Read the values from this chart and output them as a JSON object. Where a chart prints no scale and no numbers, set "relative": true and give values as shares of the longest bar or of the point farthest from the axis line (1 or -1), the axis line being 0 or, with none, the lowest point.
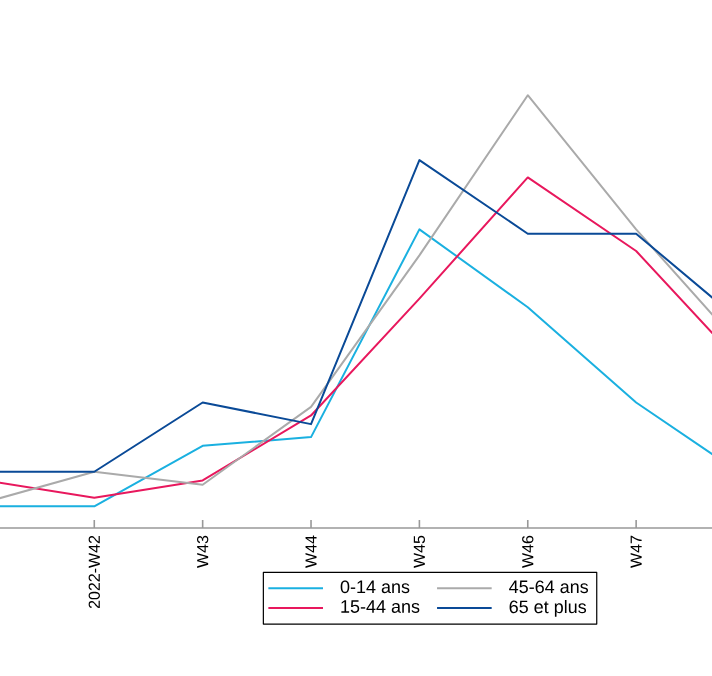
{
  "chart_data": {
    "type": "line",
    "relative": true,
    "legend": "bottom",
    "marker": "none",
    "line_style": "solid",
    "categories": [
      null,
      "2022-W42",
      "W43",
      "W44",
      "W45",
      "W46",
      "W47",
      null
    ],
    "series": [
      {
        "name": "0-14 ans",
        "color": "#1ab0e0",
        "values": [
          0.05,
          0.05,
          0.19,
          0.21,
          0.69,
          0.51,
          0.29,
          0.12
        ]
      },
      {
        "name": "15-44 ans",
        "color": "#e8185d",
        "values": [
          0.11,
          0.07,
          0.11,
          0.26,
          0.53,
          0.81,
          0.64,
          0.37
        ]
      },
      {
        "name": "45-64 ans",
        "color": "#aaaaaa",
        "values": [
          0.06,
          0.13,
          0.1,
          0.28,
          0.63,
          1.0,
          0.69,
          0.41
        ]
      },
      {
        "name": "65 et plus",
        "color": "#0a4a97",
        "values": [
          0.13,
          0.13,
          0.29,
          0.24,
          0.85,
          0.68,
          0.68,
          0.47
        ]
      }
    ]
  }
}
